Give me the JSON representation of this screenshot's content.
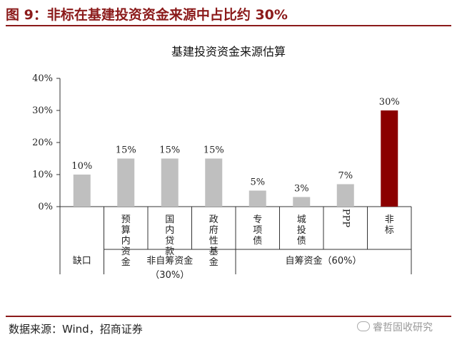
{
  "figure": {
    "title": "图 9：非标在基建投资资金来源中占比约 30%",
    "source": "数据来源：Wind，招商证券",
    "watermark": "睿哲固收研究"
  },
  "chart_data": {
    "type": "bar",
    "title": "基建投资资金来源估算",
    "ylim": [
      0,
      40
    ],
    "yticks": [
      "0%",
      "10%",
      "20%",
      "30%",
      "40%"
    ],
    "categories": [
      "缺口",
      "预算内资金",
      "国内贷款",
      "政府性基金",
      "专项债",
      "城投债",
      "PPP",
      "非标"
    ],
    "values": [
      10,
      15,
      15,
      15,
      5,
      3,
      7,
      30
    ],
    "data_labels": [
      "10%",
      "15%",
      "15%",
      "15%",
      "5%",
      "3%",
      "7%",
      "30%"
    ],
    "bar_colors": [
      "#bfbfbf",
      "#bfbfbf",
      "#bfbfbf",
      "#bfbfbf",
      "#bfbfbf",
      "#bfbfbf",
      "#bfbfbf",
      "#8b0000"
    ],
    "groups": [
      {
        "label": "缺口",
        "sublabel": ""
      },
      {
        "label": "非自筹资金",
        "sublabel": "（30%）"
      },
      {
        "label": "自筹资金（60%）",
        "sublabel": ""
      }
    ],
    "grid": false
  }
}
